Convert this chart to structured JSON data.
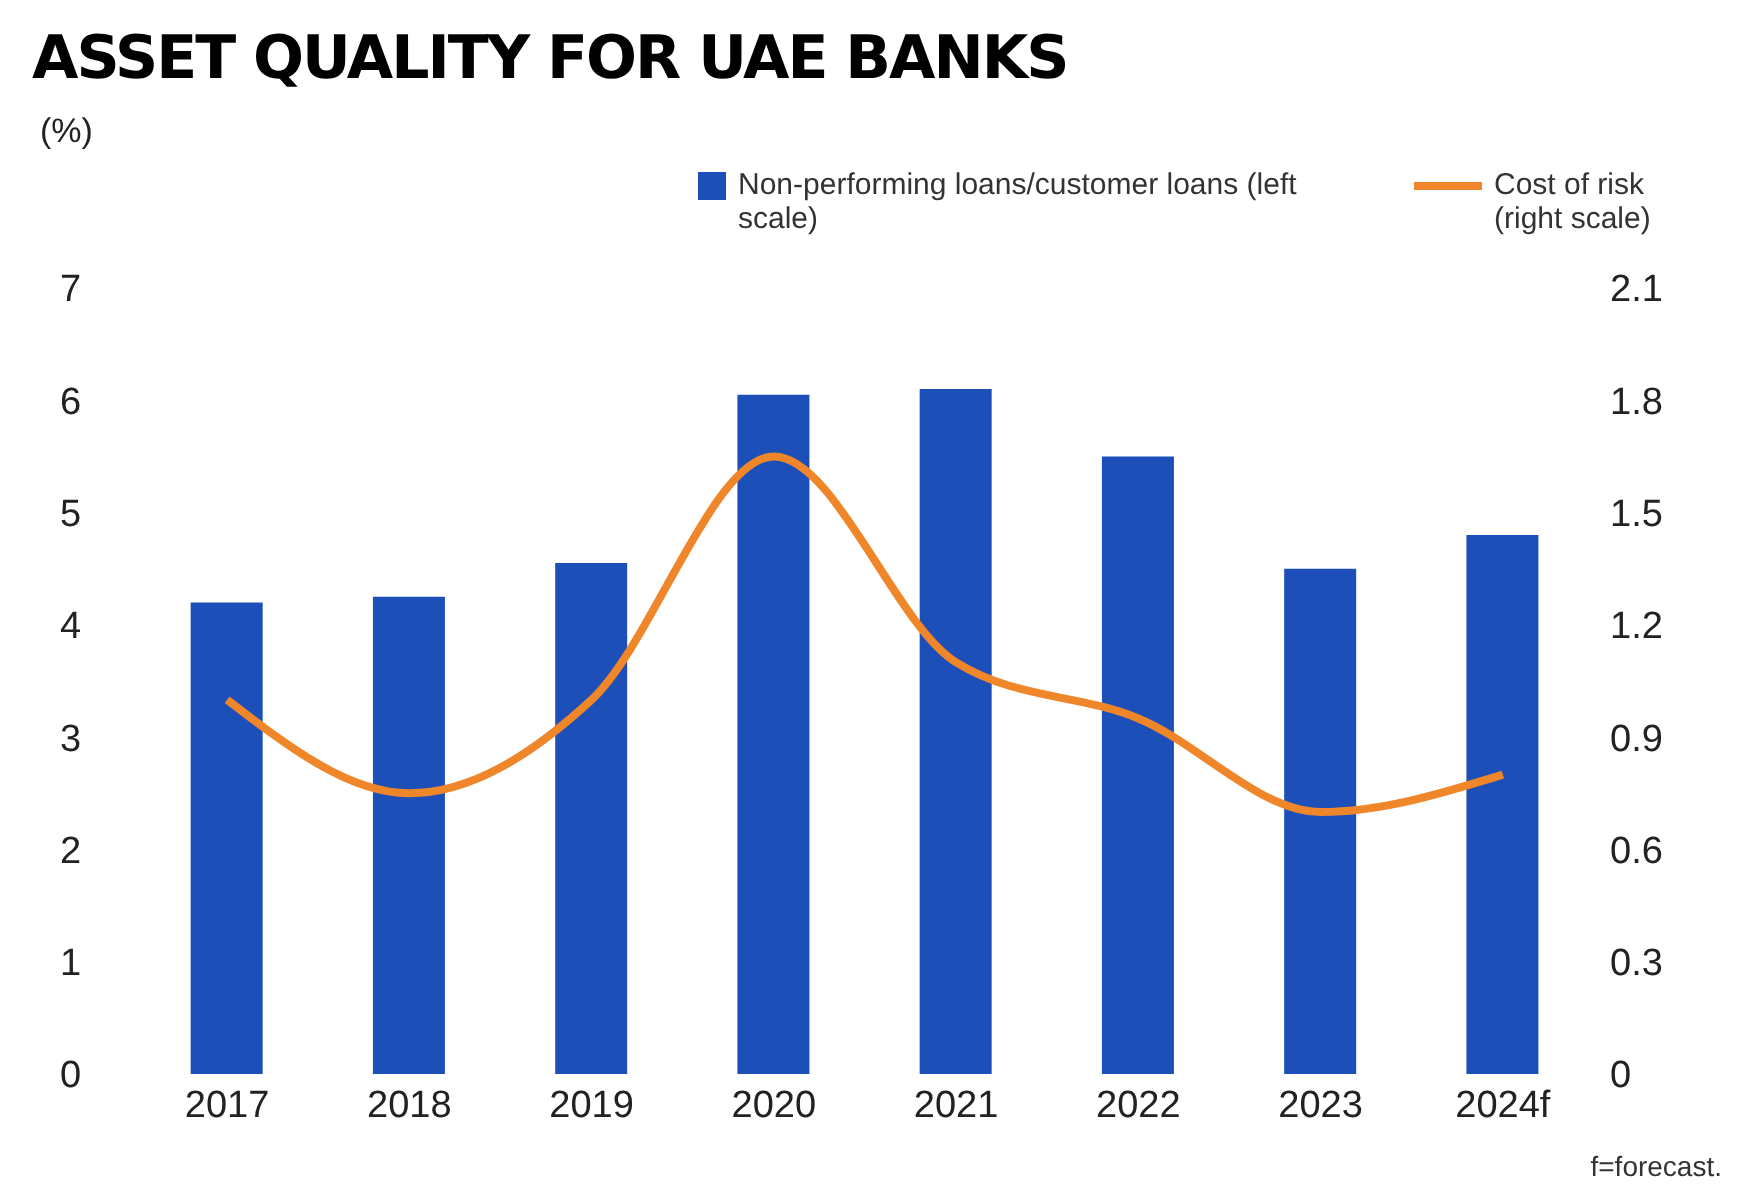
{
  "chart_data": {
    "type": "bar",
    "title": "ASSET QUALITY FOR UAE BANKS",
    "ylabel": "(%)",
    "categories": [
      "2017",
      "2018",
      "2019",
      "2020",
      "2021",
      "2022",
      "2023",
      "2024f"
    ],
    "series": [
      {
        "name": "Non-performing loans/customer loans (left scale)",
        "type": "bar",
        "color": "#1d4fb8",
        "values": [
          4.2,
          4.25,
          4.55,
          6.05,
          6.1,
          5.5,
          4.5,
          4.8
        ]
      },
      {
        "name": "Cost of risk (right scale)",
        "type": "line",
        "axis": "y2",
        "color": "#f0862a",
        "values": [
          1.0,
          0.75,
          1.0,
          1.65,
          1.1,
          0.95,
          0.7,
          0.8
        ]
      }
    ],
    "ylim": [
      0,
      7
    ],
    "yticks": [
      0,
      1,
      2,
      3,
      4,
      5,
      6,
      7
    ],
    "y2lim": [
      0,
      2.1
    ],
    "y2ticks": [
      0,
      0.3,
      0.6,
      0.9,
      1.2,
      1.5,
      1.8,
      2.1
    ],
    "legend": "top right",
    "marker": "none",
    "annotations": [
      "f=forecast."
    ]
  }
}
